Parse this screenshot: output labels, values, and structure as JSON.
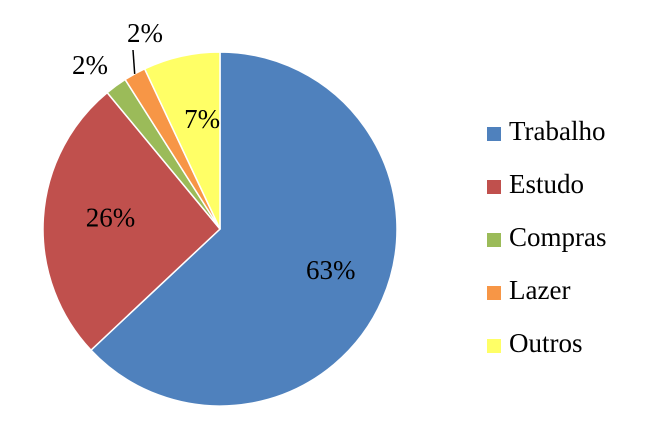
{
  "chart_data": {
    "type": "pie",
    "title": "",
    "legend_position": "right",
    "slices": [
      {
        "name": "Trabalho",
        "value": 63,
        "label": "63%",
        "color": "#4F81BD"
      },
      {
        "name": "Estudo",
        "value": 26,
        "label": "26%",
        "color": "#C0504D"
      },
      {
        "name": "Compras",
        "value": 2,
        "label": "2%",
        "color": "#9BBB59"
      },
      {
        "name": "Lazer",
        "value": 2,
        "label": "2%",
        "color": "#F79646"
      },
      {
        "name": "Outros",
        "value": 7,
        "label": "7%",
        "color": "#FFFF66"
      }
    ]
  }
}
